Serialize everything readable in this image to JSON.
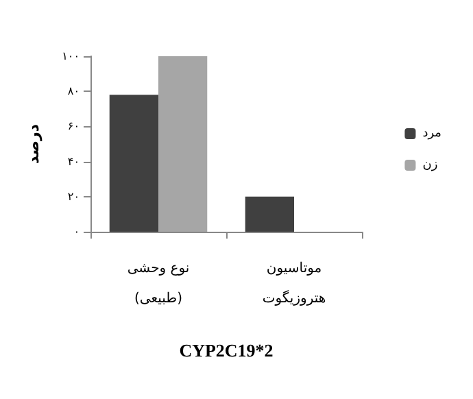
{
  "chart_data": {
    "type": "bar",
    "xlabel": "CYP2C19*2",
    "ylabel": "درصد",
    "categories": [
      "نوع وحشی\n(طبیعی)",
      "موتاسیون\nهتروزیگوت"
    ],
    "series": [
      {
        "name": "مرد",
        "color": "#404040",
        "values": [
          78,
          20
        ]
      },
      {
        "name": "زن",
        "color": "#a6a6a6",
        "values": [
          100,
          0
        ]
      }
    ],
    "ylim": [
      0,
      100
    ],
    "yticks": [
      {
        "value": 0,
        "label": "۰"
      },
      {
        "value": 20,
        "label": "۲۰"
      },
      {
        "value": 40,
        "label": "۴۰"
      },
      {
        "value": 60,
        "label": "۶۰"
      },
      {
        "value": 80,
        "label": "۸۰"
      },
      {
        "value": 100,
        "label": "۱۰۰"
      }
    ],
    "grid": false,
    "legend": "right"
  }
}
